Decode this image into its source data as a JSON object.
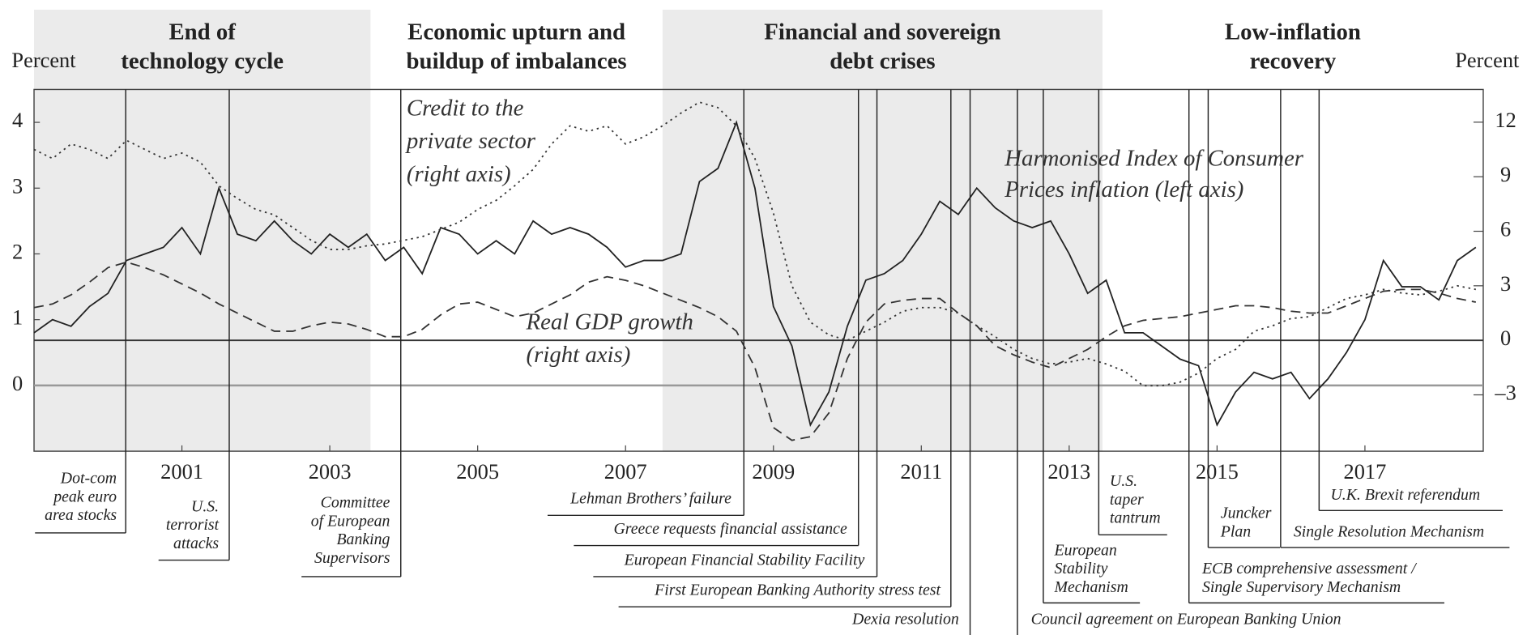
{
  "chart_data": {
    "type": "line",
    "ylabel": "Percent",
    "y2label": "Percent",
    "xlim": [
      1999,
      2018.6
    ],
    "ylim": [
      -1,
      4.5
    ],
    "y2lim": [
      -6.1,
      13.8
    ],
    "xticks": [
      2001,
      2003,
      2005,
      2007,
      2009,
      2011,
      2013,
      2015,
      2017
    ],
    "yticks": [
      0,
      1,
      2,
      3,
      4
    ],
    "y2ticks": [
      {
        "value": -3,
        "label": "–3"
      },
      0,
      3,
      6,
      9,
      12
    ],
    "periods": [
      {
        "label": [
          "End of",
          "technology cycle"
        ],
        "start": 1999,
        "end": 2003.55,
        "shaded": true
      },
      {
        "label": [
          "Economic upturn and",
          "buildup of imbalances"
        ],
        "start": 2003.55,
        "end": 2007.5,
        "shaded": false
      },
      {
        "label": [
          "Financial and sovereign",
          "debt crises"
        ],
        "start": 2007.5,
        "end": 2013.45,
        "shaded": true
      },
      {
        "label": [
          "Low-inflation",
          "recovery"
        ],
        "start": 2013.45,
        "end": 2018.6,
        "shaded": false
      }
    ],
    "x": [
      1999,
      1999.25,
      1999.5,
      1999.75,
      2000,
      2000.25,
      2000.5,
      2000.75,
      2001,
      2001.25,
      2001.5,
      2001.75,
      2002,
      2002.25,
      2002.5,
      2002.75,
      2003,
      2003.25,
      2003.5,
      2003.75,
      2004,
      2004.25,
      2004.5,
      2004.75,
      2005,
      2005.25,
      2005.5,
      2005.75,
      2006,
      2006.25,
      2006.5,
      2006.75,
      2007,
      2007.25,
      2007.5,
      2007.75,
      2008,
      2008.25,
      2008.5,
      2008.75,
      2009,
      2009.25,
      2009.5,
      2009.75,
      2010,
      2010.25,
      2010.5,
      2010.75,
      2011,
      2011.25,
      2011.5,
      2011.75,
      2012,
      2012.25,
      2012.5,
      2012.75,
      2013,
      2013.25,
      2013.5,
      2013.75,
      2014,
      2014.25,
      2014.5,
      2014.75,
      2015,
      2015.25,
      2015.5,
      2015.75,
      2016,
      2016.25,
      2016.5,
      2016.75,
      2017,
      2017.25,
      2017.5,
      2017.75,
      2018,
      2018.25,
      2018.5
    ],
    "series": [
      {
        "label": [
          "Harmonised Index of Consumer",
          "Prices inflation (left axis)"
        ],
        "axis": "y",
        "color": "#222222",
        "dash": "none",
        "values": [
          0.8,
          1.0,
          0.9,
          1.2,
          1.4,
          1.9,
          2.0,
          2.1,
          2.4,
          2.0,
          3.0,
          2.3,
          2.2,
          2.5,
          2.2,
          2.0,
          2.3,
          2.1,
          2.3,
          1.9,
          2.1,
          1.7,
          2.4,
          2.3,
          2.0,
          2.2,
          2.0,
          2.5,
          2.3,
          2.4,
          2.3,
          2.1,
          1.8,
          1.9,
          1.9,
          2.0,
          3.1,
          3.3,
          4.0,
          3.0,
          1.2,
          0.6,
          -0.6,
          -0.1,
          0.9,
          1.6,
          1.7,
          1.9,
          2.3,
          2.8,
          2.6,
          3.0,
          2.7,
          2.5,
          2.4,
          2.5,
          2.0,
          1.4,
          1.6,
          0.8,
          0.8,
          0.6,
          0.4,
          0.3,
          -0.6,
          -0.1,
          0.2,
          0.1,
          0.2,
          -0.2,
          0.1,
          0.5,
          1.0,
          1.9,
          1.5,
          1.5,
          1.3,
          1.9,
          2.1
        ]
      },
      {
        "label": [
          "Credit to the",
          "private sector",
          "(right axis)"
        ],
        "axis": "y2",
        "color": "#333333",
        "dash": "2 4",
        "values": [
          10.5,
          10.0,
          10.8,
          10.5,
          10.0,
          11.0,
          10.5,
          10.0,
          10.3,
          9.8,
          8.5,
          7.8,
          7.2,
          6.9,
          6.2,
          5.5,
          5.0,
          5.0,
          5.2,
          5.3,
          5.5,
          5.7,
          6.1,
          6.5,
          7.2,
          7.7,
          8.5,
          9.4,
          10.8,
          11.8,
          11.5,
          11.8,
          10.8,
          11.2,
          11.8,
          12.5,
          13.1,
          12.8,
          11.8,
          10.0,
          7.0,
          3.0,
          1.0,
          0.3,
          0.0,
          0.5,
          1.0,
          1.6,
          1.8,
          1.8,
          1.5,
          0.8,
          0.2,
          -0.5,
          -1.0,
          -1.3,
          -1.2,
          -1.0,
          -1.3,
          -1.7,
          -2.5,
          -2.5,
          -2.3,
          -1.8,
          -1.0,
          -0.5,
          0.5,
          0.8,
          1.2,
          1.3,
          1.8,
          2.3,
          2.5,
          2.8,
          2.6,
          2.5,
          2.7,
          3.0,
          2.8
        ]
      },
      {
        "label": [
          "Real GDP growth",
          "(right axis)"
        ],
        "axis": "y2",
        "color": "#333333",
        "dash": "10 6",
        "values": [
          1.8,
          2.0,
          2.5,
          3.2,
          4.0,
          4.3,
          4.0,
          3.6,
          3.1,
          2.6,
          2.0,
          1.5,
          1.0,
          0.5,
          0.5,
          0.8,
          1.0,
          0.9,
          0.6,
          0.2,
          0.2,
          0.6,
          1.4,
          2.0,
          2.1,
          1.7,
          1.3,
          1.5,
          2.0,
          2.5,
          3.2,
          3.5,
          3.3,
          3.0,
          2.6,
          2.2,
          1.8,
          1.3,
          0.5,
          -1.5,
          -4.8,
          -5.5,
          -5.3,
          -4.0,
          -1.0,
          1.0,
          2.0,
          2.2,
          2.3,
          2.3,
          1.5,
          0.8,
          -0.3,
          -0.8,
          -1.2,
          -1.5,
          -1.0,
          -0.5,
          0.2,
          0.8,
          1.1,
          1.2,
          1.3,
          1.5,
          1.7,
          1.9,
          1.9,
          1.8,
          1.6,
          1.5,
          1.5,
          1.9,
          2.3,
          2.7,
          2.8,
          2.8,
          2.6,
          2.3,
          2.1
        ]
      }
    ],
    "events": [
      {
        "label": [
          "Dot-com",
          "peak euro",
          "area stocks"
        ],
        "date": 2000.24
      },
      {
        "label": [
          "U.S.",
          "terrorist",
          "attacks"
        ],
        "date": 2001.64
      },
      {
        "label": [
          "Committee",
          "of European",
          "Banking",
          "Supervisors"
        ],
        "date": 2003.96
      },
      {
        "label": [
          "Lehman Brothers’ failure"
        ],
        "date": 2008.6
      },
      {
        "label": [
          "Greece requests financial assistance"
        ],
        "date": 2010.15
      },
      {
        "label": [
          "European Financial Stability Facility"
        ],
        "date": 2010.4
      },
      {
        "label": [
          "First European Banking Authority stress test"
        ],
        "date": 2011.4
      },
      {
        "label": [
          "Dexia resolution"
        ],
        "date": 2011.66
      },
      {
        "label": [
          "Council agreement on European Banking Union"
        ],
        "date": 2012.3
      },
      {
        "label": [
          "European",
          "Stability",
          "Mechanism"
        ],
        "date": 2012.65
      },
      {
        "label": [
          "U.S.",
          "taper",
          "tantrum"
        ],
        "date": 2013.4
      },
      {
        "label": [
          "ECB comprehensive assessment /",
          "Single Supervisory Mechanism"
        ],
        "date": 2014.62
      },
      {
        "label": [
          "Juncker",
          "Plan"
        ],
        "date": 2014.88
      },
      {
        "label": [
          "Single Resolution Mechanism"
        ],
        "date": 2015.86
      },
      {
        "label": [
          "U.K. Brexit referendum"
        ],
        "date": 2016.38
      }
    ]
  }
}
